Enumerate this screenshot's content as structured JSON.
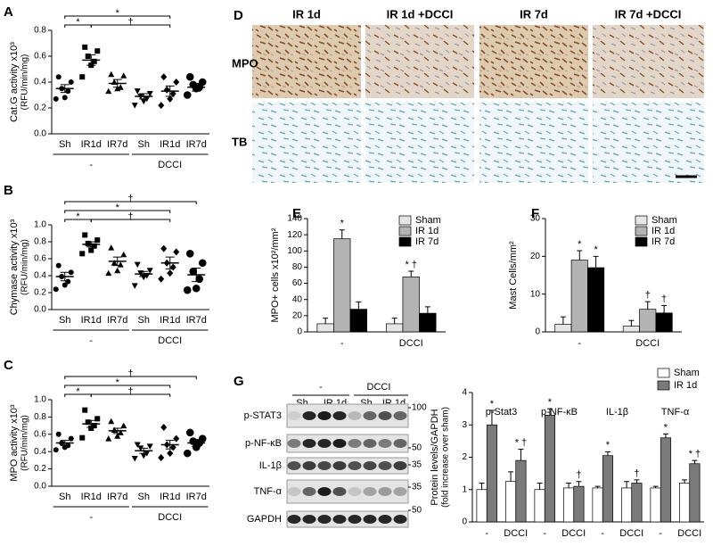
{
  "panel_labels": [
    "A",
    "B",
    "C",
    "D",
    "E",
    "F",
    "G"
  ],
  "panel_d": {
    "columns": [
      "IR 1d",
      "IR 1d +DCCI",
      "IR 7d",
      "IR 7d +DCCI"
    ],
    "rows": [
      "MPO",
      "TB"
    ]
  },
  "blot": {
    "groups": [
      "-",
      "DCCI"
    ],
    "lanes": [
      "Sh",
      "IR 1d",
      "Sh",
      "IR 1d"
    ],
    "proteins": [
      "p-STAT3",
      "p-NF-κB",
      "IL-1β",
      "TNF-α",
      "GAPDH"
    ],
    "mw_markers": [
      "100",
      "50",
      "35",
      "35",
      "50"
    ]
  },
  "chart_data": [
    {
      "type": "dot",
      "ylabel": "Cat.G activity x10³",
      "ylabel_unit": "(RFU/min/mg)",
      "categories": [
        "Sh",
        "IR1d",
        "IR7d",
        "Sh",
        "IR1d",
        "IR7d"
      ],
      "groups": [
        {
          "label": "-",
          "categories": [
            0,
            2
          ]
        },
        {
          "label": "DCCI",
          "categories": [
            3,
            5
          ]
        }
      ],
      "markers": [
        "circle",
        "square",
        "triangle",
        "triangle-down",
        "diamond",
        "circle-large"
      ],
      "points": [
        [
          0.44,
          0.4,
          0.35,
          0.33,
          0.28,
          0.27
        ],
        [
          0.67,
          0.64,
          0.6,
          0.56,
          0.53,
          0.44
        ],
        [
          0.46,
          0.45,
          0.4,
          0.36,
          0.35,
          0.33
        ],
        [
          0.33,
          0.31,
          0.29,
          0.27,
          0.25,
          0.22
        ],
        [
          0.44,
          0.4,
          0.34,
          0.31,
          0.27,
          0.22
        ],
        [
          0.44,
          0.4,
          0.38,
          0.36,
          0.35,
          0.3
        ]
      ],
      "means": [
        0.35,
        0.57,
        0.39,
        0.29,
        0.33,
        0.36
      ],
      "sem": [
        0.03,
        0.04,
        0.03,
        0.02,
        0.04,
        0.03
      ],
      "ylim": [
        0,
        0.8
      ],
      "yticks": [
        {
          "value": 0,
          "label": "0.0"
        },
        0.2,
        0.4,
        0.6,
        0.8
      ],
      "brackets": [
        {
          "label": "*",
          "categories": [
            0,
            4
          ]
        },
        {
          "label": "*",
          "categories": [
            0,
            1
          ]
        },
        {
          "label": "†",
          "categories": [
            1,
            4
          ]
        }
      ]
    },
    {
      "type": "dot",
      "ylabel": "Chymase activity x10³",
      "ylabel_unit": "(RFU/min/mg)",
      "categories": [
        "Sh",
        "IR1d",
        "IR7d",
        "Sh",
        "IR1d",
        "IR7d"
      ],
      "groups": [
        {
          "label": "-",
          "categories": [
            0,
            2
          ]
        },
        {
          "label": "DCCI",
          "categories": [
            3,
            5
          ]
        }
      ],
      "markers": [
        "circle",
        "square",
        "triangle",
        "triangle-down",
        "diamond",
        "circle-large"
      ],
      "points": [
        [
          0.52,
          0.44,
          0.39,
          0.33,
          0.29,
          0.24
        ],
        [
          0.88,
          0.82,
          0.78,
          0.75,
          0.7,
          0.66
        ],
        [
          0.73,
          0.65,
          0.55,
          0.53,
          0.46,
          0.43
        ],
        [
          0.53,
          0.46,
          0.43,
          0.4,
          0.38,
          0.28
        ],
        [
          0.72,
          0.68,
          0.55,
          0.5,
          0.43,
          0.36
        ],
        [
          0.66,
          0.55,
          0.45,
          0.36,
          0.25,
          0.23
        ]
      ],
      "means": [
        0.39,
        0.77,
        0.57,
        0.42,
        0.55,
        0.41
      ],
      "sem": [
        0.05,
        0.03,
        0.05,
        0.03,
        0.07,
        0.08
      ],
      "ylim": [
        0,
        1
      ],
      "yticks": [
        {
          "value": 0,
          "label": "0.0"
        },
        0.2,
        0.4,
        0.6,
        0.8,
        {
          "value": 1,
          "label": "1.0"
        }
      ],
      "brackets": [
        {
          "label": "†",
          "categories": [
            0,
            5
          ]
        },
        {
          "label": "*",
          "categories": [
            0,
            4
          ]
        },
        {
          "label": "*",
          "categories": [
            0,
            1
          ]
        },
        {
          "label": "†",
          "categories": [
            1,
            4
          ]
        }
      ]
    },
    {
      "type": "dot",
      "ylabel": "MPO activity x10³",
      "ylabel_unit": "(RFU/min/mg)",
      "categories": [
        "Sh",
        "IR1d",
        "IR7d",
        "Sh",
        "IR1d",
        "IR7d"
      ],
      "groups": [
        {
          "label": "-",
          "categories": [
            0,
            2
          ]
        },
        {
          "label": "DCCI",
          "categories": [
            3,
            5
          ]
        }
      ],
      "markers": [
        "circle",
        "square",
        "triangle",
        "triangle-down",
        "diamond",
        "circle-large"
      ],
      "points": [
        [
          0.6,
          0.55,
          0.5,
          0.47,
          0.45,
          0.42
        ],
        [
          0.88,
          0.78,
          0.74,
          0.7,
          0.67,
          0.56
        ],
        [
          0.75,
          0.7,
          0.65,
          0.62,
          0.58,
          0.55
        ],
        [
          0.48,
          0.46,
          0.44,
          0.38,
          0.35,
          0.32
        ],
        [
          0.68,
          0.55,
          0.48,
          0.45,
          0.38,
          0.33
        ],
        [
          0.62,
          0.55,
          0.52,
          0.5,
          0.45,
          0.38
        ]
      ],
      "means": [
        0.5,
        0.72,
        0.64,
        0.41,
        0.48,
        0.5
      ],
      "sem": [
        0.03,
        0.04,
        0.03,
        0.03,
        0.05,
        0.04
      ],
      "ylim": [
        0,
        1
      ],
      "yticks": [
        {
          "value": 0,
          "label": "0.0"
        },
        0.2,
        0.4,
        0.6,
        0.8,
        {
          "value": 1,
          "label": "1.0"
        }
      ],
      "brackets": [
        {
          "label": "†",
          "categories": [
            0,
            5
          ]
        },
        {
          "label": "*",
          "categories": [
            0,
            4
          ]
        },
        {
          "label": "*",
          "categories": [
            0,
            1
          ]
        },
        {
          "label": "†",
          "categories": [
            1,
            4
          ]
        }
      ]
    },
    {
      "type": "bar",
      "ylabel": "MPO+ cells x10²/mm²",
      "categories": [
        "-",
        "DCCI"
      ],
      "legend": "upper right",
      "series": [
        {
          "name": "Sham",
          "color": "#e6e6e6",
          "values": [
            10,
            10
          ],
          "errors": [
            7,
            7
          ]
        },
        {
          "name": "IR 1d",
          "color": "#b3b3b3",
          "values": [
            115,
            68
          ],
          "errors": [
            11,
            7
          ],
          "sig": [
            "*",
            "* †"
          ]
        },
        {
          "name": "IR 7d",
          "color": "#000000",
          "values": [
            28,
            23
          ],
          "errors": [
            9,
            8
          ]
        }
      ],
      "ylim": [
        0,
        140
      ],
      "yticks": [
        0,
        20,
        40,
        60,
        80,
        100,
        120,
        140
      ]
    },
    {
      "type": "bar",
      "ylabel": "Mast Cells/mm²",
      "categories": [
        "-",
        "DCCI"
      ],
      "legend": "upper right",
      "series": [
        {
          "name": "Sham",
          "color": "#e6e6e6",
          "values": [
            2,
            1.5
          ],
          "errors": [
            2,
            1.5
          ]
        },
        {
          "name": "IR 1d",
          "color": "#b3b3b3",
          "values": [
            19,
            6
          ],
          "errors": [
            2.5,
            2
          ],
          "sig": [
            "*",
            "†"
          ]
        },
        {
          "name": "IR 7d",
          "color": "#000000",
          "values": [
            17,
            5
          ],
          "errors": [
            3,
            2
          ],
          "sig": [
            "*",
            "†"
          ]
        }
      ],
      "ylim": [
        0,
        30
      ],
      "yticks": [
        0,
        10,
        20,
        30
      ]
    },
    {
      "type": "bar",
      "ylabel": "Protein levels/GAPDH",
      "ylabel_unit": "(fold increase over sham)",
      "legend": "above right",
      "categories": [
        "-",
        "DCCI",
        "-",
        "DCCI",
        "-",
        "DCCI",
        "-",
        "DCCI"
      ],
      "groups": [
        {
          "label": "p-Stat3",
          "categories": [
            0,
            1
          ]
        },
        {
          "label": "p-NF-κB",
          "categories": [
            2,
            3
          ]
        },
        {
          "label": "IL-1β",
          "categories": [
            4,
            5
          ]
        },
        {
          "label": "TNF-α",
          "categories": [
            6,
            7
          ]
        }
      ],
      "series": [
        {
          "name": "Sham",
          "color": "#ffffff",
          "values": [
            1.0,
            1.25,
            1.0,
            1.05,
            1.05,
            1.05,
            1.05,
            1.2
          ],
          "errors": [
            0.2,
            0.3,
            0.2,
            0.15,
            0.05,
            0.2,
            0.05,
            0.1
          ]
        },
        {
          "name": "IR 1d",
          "color": "#7a7a7a",
          "values": [
            3.0,
            1.9,
            3.3,
            1.1,
            2.05,
            1.2,
            2.6,
            1.8
          ],
          "errors": [
            0.45,
            0.35,
            0.2,
            0.15,
            0.12,
            0.1,
            0.12,
            0.1
          ],
          "sig": [
            "*",
            "* †",
            "*",
            "†",
            "*",
            "†",
            "*",
            "* †"
          ]
        }
      ],
      "ylim": [
        0,
        4
      ],
      "yticks": [
        0,
        1,
        2,
        3,
        4
      ]
    }
  ]
}
